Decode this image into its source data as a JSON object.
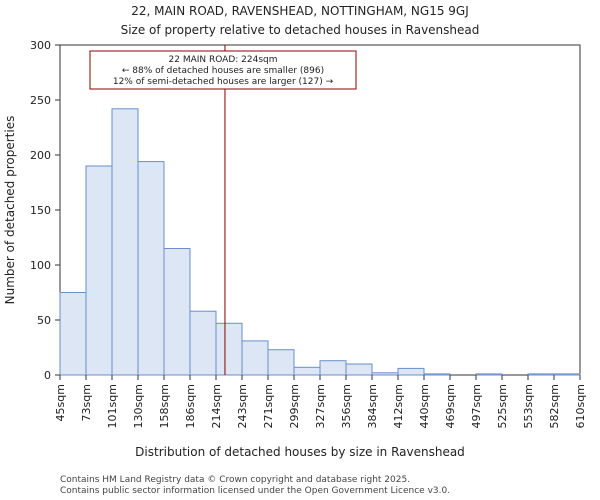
{
  "chart_data": {
    "type": "bar",
    "title_lines": [
      "22, MAIN ROAD, RAVENSHEAD, NOTTINGHAM, NG15 9GJ",
      "Size of property relative to detached houses in Ravenshead"
    ],
    "xlabel": "Distribution of detached houses by size in Ravenshead",
    "ylabel": "Number of detached properties",
    "ylim": [
      0,
      300
    ],
    "yticks": [
      0,
      50,
      100,
      150,
      200,
      250,
      300
    ],
    "bin_edges": [
      "45sqm",
      "73sqm",
      "101sqm",
      "130sqm",
      "158sqm",
      "186sqm",
      "214sqm",
      "243sqm",
      "271sqm",
      "299sqm",
      "327sqm",
      "356sqm",
      "384sqm",
      "412sqm",
      "440sqm",
      "469sqm",
      "497sqm",
      "525sqm",
      "553sqm",
      "582sqm",
      "610sqm"
    ],
    "values": [
      75,
      190,
      242,
      194,
      115,
      58,
      47,
      31,
      23,
      7,
      13,
      10,
      2,
      6,
      1,
      0,
      1,
      0,
      1,
      1
    ],
    "marker": {
      "value_sqm": 224,
      "color": "#8b0000",
      "annotation": [
        "22 MAIN ROAD: 224sqm",
        "← 88% of detached houses are smaller (896)",
        "12% of semi-detached houses are larger (127) →"
      ]
    },
    "bar_fill": "#dce6f5",
    "bar_edge": "#6a8fc8",
    "footer": [
      "Contains HM Land Registry data © Crown copyright and database right 2025.",
      "Contains public sector information licensed under the Open Government Licence v3.0."
    ]
  }
}
